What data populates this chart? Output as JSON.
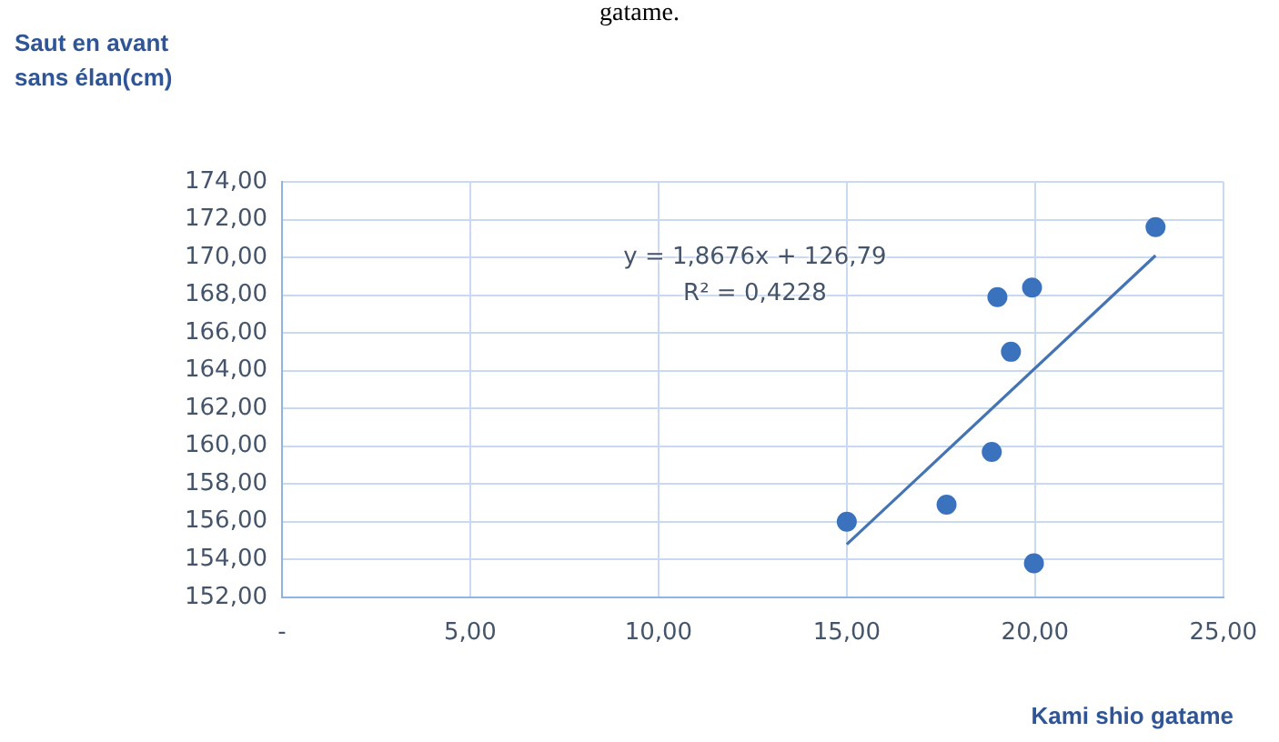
{
  "chart_data": {
    "type": "scatter",
    "xlabel": "Kami shio gatame",
    "ylabel": "Saut en avant sans élan(cm)",
    "annotations": [
      "gatame.",
      "y = 1,8676x + 126,79\nR² = 0,4228"
    ],
    "series": [
      {
        "color": "#3a72bd",
        "x": [
          23.2,
          19.92,
          19.0,
          19.36,
          18.85,
          17.65,
          15.0,
          19.97
        ],
        "values": [
          171.6,
          168.4,
          167.9,
          165.0,
          159.7,
          156.9,
          156.0,
          153.8
        ]
      },
      {
        "type": "line",
        "marker": "none",
        "color": "#4474b4",
        "x": [
          15.0,
          23.2
        ],
        "values": [
          154.8,
          170.1
        ]
      }
    ],
    "xlim": [
      0,
      25
    ],
    "xticks": [
      {
        "value": 0,
        "label": "-"
      },
      {
        "value": 5,
        "label": "5,00"
      },
      {
        "value": 10,
        "label": "10,00"
      },
      {
        "value": 15,
        "label": "15,00"
      },
      {
        "value": 20,
        "label": "20,00"
      },
      {
        "value": 25,
        "label": "25,00"
      }
    ],
    "ylim": [
      152,
      174
    ],
    "yticks": [
      {
        "value": 152,
        "label": "152,00"
      },
      {
        "value": 154,
        "label": "154,00"
      },
      {
        "value": 156,
        "label": "156,00"
      },
      {
        "value": 158,
        "label": "158,00"
      },
      {
        "value": 160,
        "label": "160,00"
      },
      {
        "value": 162,
        "label": "162,00"
      },
      {
        "value": 164,
        "label": "164,00"
      },
      {
        "value": 166,
        "label": "166,00"
      },
      {
        "value": 168,
        "label": "168,00"
      },
      {
        "value": 170,
        "label": "170,00"
      },
      {
        "value": 172,
        "label": "172,00"
      },
      {
        "value": 174,
        "label": "174,00"
      }
    ],
    "grid": true,
    "legend": false,
    "marker": "circle"
  }
}
